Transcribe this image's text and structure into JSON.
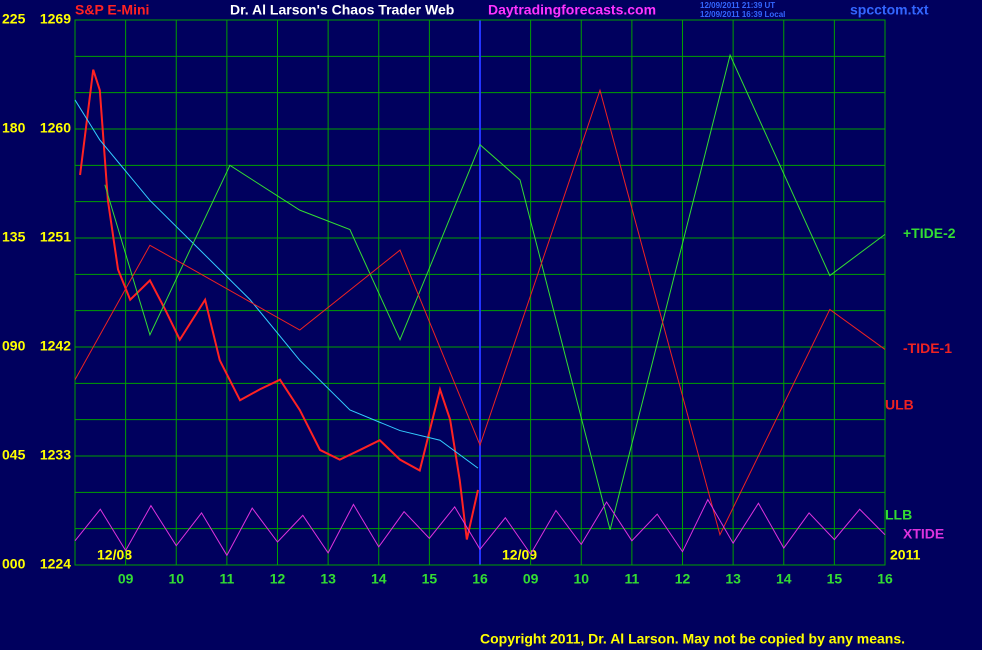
{
  "chart_data": {
    "type": "line",
    "title": "Dr. Al Larson's Chaos Trader Web",
    "subtitle": "S&P E-Mini",
    "site": "Daytradingforecasts.com",
    "timestamps": [
      "12/09/2011 21:39 UT",
      "12/09/2011 16:39 Local"
    ],
    "file": "spcctom.txt",
    "copyright": "Copyright 2011, Dr. Al Larson. May not be copied by any means.",
    "dates": [
      "12/08",
      "12/09",
      "2011"
    ],
    "annotations": [
      "ULB",
      "LLB"
    ],
    "xlim": [
      0,
      16
    ],
    "xticks": [
      {
        "value": 1,
        "label": "09"
      },
      {
        "value": 2,
        "label": "10"
      },
      {
        "value": 3,
        "label": "11"
      },
      {
        "value": 4,
        "label": "12"
      },
      {
        "value": 5,
        "label": "13"
      },
      {
        "value": 6,
        "label": "14"
      },
      {
        "value": 7,
        "label": "15"
      },
      {
        "value": 8,
        "label": "16"
      },
      {
        "value": 9,
        "label": "09"
      },
      {
        "value": 10,
        "label": "10"
      },
      {
        "value": 11,
        "label": "11"
      },
      {
        "value": 12,
        "label": "12"
      },
      {
        "value": 13,
        "label": "13"
      },
      {
        "value": 14,
        "label": "14"
      },
      {
        "value": 15,
        "label": "15"
      },
      {
        "value": 16,
        "label": "16"
      }
    ],
    "ylim": [
      1224,
      1269
    ],
    "yticks": [
      1224,
      1233,
      1242,
      1251,
      1260,
      1269
    ],
    "y2lim": [
      0,
      225
    ],
    "y2ticks": [
      {
        "value": 0,
        "label": "000"
      },
      {
        "value": 45,
        "label": "045"
      },
      {
        "value": 90,
        "label": "090"
      },
      135,
      180,
      225
    ],
    "grid": true,
    "series": [
      {
        "color": "#ff2222",
        "x": [
          0.1,
          0.36,
          0.49,
          0.65,
          0.85,
          1.09,
          1.48,
          1.78,
          2.07,
          2.57,
          2.86,
          3.26,
          3.65,
          4.05,
          4.44,
          4.84,
          5.23,
          5.63,
          6.02,
          6.42,
          6.81,
          7.21,
          7.41,
          7.6,
          7.74,
          7.96
        ],
        "values": [
          1256.2,
          1264.9,
          1263.2,
          1254.1,
          1248.4,
          1245.9,
          1247.5,
          1245.1,
          1242.6,
          1245.9,
          1240.9,
          1237.6,
          1238.5,
          1239.3,
          1236.8,
          1233.5,
          1232.7,
          1233.5,
          1234.3,
          1232.7,
          1231.8,
          1238.5,
          1236.0,
          1231.0,
          1226.1,
          1230.2
        ]
      },
      {
        "color": "#33ccff",
        "x": [
          0,
          0.49,
          1.48,
          2.47,
          3.46,
          4.44,
          5.43,
          6.42,
          7.21,
          7.96
        ],
        "values": [
          1262.4,
          1259.1,
          1254.1,
          1250.0,
          1245.9,
          1240.9,
          1236.8,
          1235.1,
          1234.3,
          1232.0
        ]
      },
      {
        "name": "+TIDE-2",
        "color": "#33dd33",
        "x": [
          0.59,
          1.48,
          3.06,
          4.44,
          5.43,
          6.42,
          8.0,
          8.79,
          10.57,
          12.94,
          14.91,
          16.0
        ],
        "values": [
          1255.4,
          1243.0,
          1257.0,
          1253.3,
          1251.7,
          1242.6,
          1258.7,
          1255.8,
          1226.9,
          1266.1,
          1247.9,
          1251.3
        ]
      },
      {
        "name": "-TIDE-1",
        "color": "#ee2222",
        "x": [
          0,
          1.48,
          4.44,
          6.42,
          8.0,
          10.37,
          12.74,
          14.91,
          16.0
        ],
        "values": [
          1239.3,
          1250.4,
          1243.4,
          1250.0,
          1233.9,
          1263.2,
          1226.5,
          1245.1,
          1241.8
        ]
      },
      {
        "name": "XTIDE",
        "color": "#dd33dd",
        "x": [
          0,
          0.5,
          1,
          1.5,
          2,
          2.5,
          3,
          3.5,
          4,
          4.5,
          5,
          5.5,
          6,
          6.5,
          7,
          7.5,
          8,
          8.5,
          9,
          9.5,
          10,
          10.5,
          11,
          11.5,
          12,
          12.5,
          13,
          13.5,
          14,
          14.5,
          15,
          15.5,
          16
        ],
        "values": [
          1226.0,
          1228.6,
          1225.2,
          1228.9,
          1225.6,
          1228.3,
          1224.8,
          1228.7,
          1225.9,
          1228.1,
          1225.0,
          1229.0,
          1225.5,
          1228.4,
          1226.2,
          1228.8,
          1225.3,
          1227.9,
          1224.9,
          1228.5,
          1225.7,
          1229.2,
          1226.0,
          1228.2,
          1225.1,
          1229.4,
          1225.8,
          1229.1,
          1225.4,
          1228.3,
          1226.1,
          1228.6,
          1226.5
        ]
      }
    ]
  }
}
